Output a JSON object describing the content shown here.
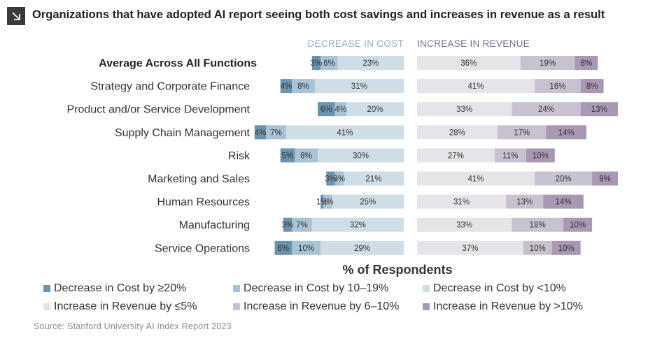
{
  "title": "Organizations that have adopted AI report seeing both cost savings and increases in revenue as a result",
  "source": "Source: Stanford University AI Index Report 2023",
  "chart_data": {
    "type": "bar",
    "orientation": "horizontal",
    "stacked": true,
    "xlabel": "% of Respondents",
    "panels": [
      {
        "header": "DECREASE IN COST",
        "header_color": "#8fb0c8"
      },
      {
        "header": "INCREASE IN REVENUE",
        "header_color": "#7d6a8e"
      }
    ],
    "categories": [
      "Average Across All Functions",
      "Strategy and Corporate Finance",
      "Product and/or Service Development",
      "Supply Chain Management",
      "Risk",
      "Marketing and Sales",
      "Human Resources",
      "Manufacturing",
      "Service Operations"
    ],
    "highlight_category": "Average Across All Functions",
    "series": [
      {
        "name": "Decrease in Cost by ≥20%",
        "panel": "cost",
        "color": "#6a93ae",
        "values": [
          3,
          4,
          6,
          4,
          5,
          3,
          1,
          3,
          6
        ]
      },
      {
        "name": "Decrease in Cost by 10–19%",
        "panel": "cost",
        "color": "#a8c3d5",
        "values": [
          6,
          8,
          4,
          7,
          8,
          3,
          3,
          7,
          10
        ]
      },
      {
        "name": "Decrease in Cost by <10%",
        "panel": "cost",
        "color": "#cfdde7",
        "values": [
          23,
          31,
          20,
          41,
          30,
          21,
          25,
          32,
          29
        ]
      },
      {
        "name": "Increase in Revenue by ≤5%",
        "panel": "revenue",
        "color": "#e6e4e9",
        "values": [
          36,
          41,
          33,
          28,
          27,
          41,
          31,
          33,
          37
        ]
      },
      {
        "name": "Increase in Revenue by 6–10%",
        "panel": "revenue",
        "color": "#c8c1cf",
        "values": [
          19,
          16,
          24,
          17,
          11,
          20,
          13,
          18,
          10
        ]
      },
      {
        "name": "Increase in Revenue by >10%",
        "panel": "revenue",
        "color": "#a898b3",
        "values": [
          8,
          8,
          13,
          14,
          10,
          9,
          14,
          10,
          10
        ]
      }
    ]
  }
}
